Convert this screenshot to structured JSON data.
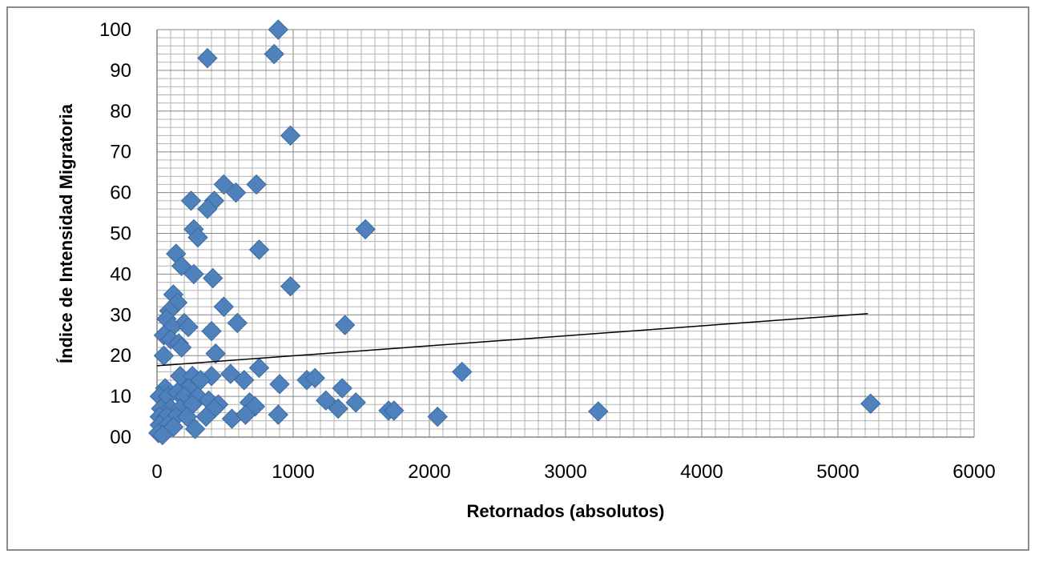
{
  "chart_data": {
    "type": "scatter",
    "xlabel": "Retornados (absolutos)",
    "ylabel": "Índice de Intensidad Migratoria",
    "xlim": [
      0,
      6000
    ],
    "ylim": [
      0,
      100
    ],
    "x_ticks": [
      "0",
      "1000",
      "2000",
      "3000",
      "4000",
      "5000",
      "6000"
    ],
    "y_ticks": [
      "00",
      "10",
      "20",
      "30",
      "40",
      "50",
      "60",
      "70",
      "80",
      "90",
      "100"
    ],
    "grid": true,
    "legend": "none",
    "marker": "diamond",
    "marker_color": "#4f81bd",
    "trendline": {
      "type": "linear",
      "x": [
        0,
        5220
      ],
      "y": [
        17.5,
        30.3
      ],
      "color": "#000000"
    },
    "points": [
      [
        890,
        100
      ],
      [
        370,
        93
      ],
      [
        860,
        94
      ],
      [
        980,
        74
      ],
      [
        730,
        62
      ],
      [
        490,
        62
      ],
      [
        580,
        60
      ],
      [
        250,
        58
      ],
      [
        420,
        58
      ],
      [
        370,
        56
      ],
      [
        270,
        51
      ],
      [
        300,
        49
      ],
      [
        1530,
        51
      ],
      [
        750,
        46
      ],
      [
        140,
        45
      ],
      [
        180,
        42
      ],
      [
        270,
        40
      ],
      [
        410,
        39
      ],
      [
        980,
        37
      ],
      [
        120,
        35
      ],
      [
        150,
        33
      ],
      [
        90,
        31
      ],
      [
        70,
        29
      ],
      [
        490,
        32
      ],
      [
        200,
        28
      ],
      [
        110,
        27
      ],
      [
        230,
        27
      ],
      [
        590,
        28
      ],
      [
        400,
        26
      ],
      [
        1380,
        27.5
      ],
      [
        50,
        25
      ],
      [
        100,
        24
      ],
      [
        160,
        23
      ],
      [
        180,
        22
      ],
      [
        430,
        20.5
      ],
      [
        50,
        20
      ],
      [
        750,
        17
      ],
      [
        2240,
        16
      ],
      [
        540,
        15.5
      ],
      [
        400,
        15
      ],
      [
        170,
        15
      ],
      [
        260,
        15
      ],
      [
        320,
        14
      ],
      [
        640,
        14
      ],
      [
        1100,
        14
      ],
      [
        1160,
        14.5
      ],
      [
        900,
        13
      ],
      [
        1360,
        12
      ],
      [
        60,
        12
      ],
      [
        230,
        12
      ],
      [
        20,
        10
      ],
      [
        80,
        10
      ],
      [
        150,
        11
      ],
      [
        200,
        10
      ],
      [
        300,
        10
      ],
      [
        380,
        9
      ],
      [
        450,
        8
      ],
      [
        680,
        8.5
      ],
      [
        1240,
        9
      ],
      [
        1460,
        8.5
      ],
      [
        5240,
        8.2
      ],
      [
        30,
        7
      ],
      [
        100,
        7
      ],
      [
        170,
        7
      ],
      [
        260,
        8
      ],
      [
        420,
        7
      ],
      [
        720,
        7.5
      ],
      [
        1330,
        7
      ],
      [
        1700,
        6.5
      ],
      [
        1740,
        6.5
      ],
      [
        3240,
        6.3
      ],
      [
        20,
        5
      ],
      [
        70,
        5
      ],
      [
        140,
        5
      ],
      [
        220,
        5
      ],
      [
        360,
        5
      ],
      [
        550,
        4.5
      ],
      [
        650,
        5.5
      ],
      [
        890,
        5.5
      ],
      [
        2060,
        5
      ],
      [
        20,
        3
      ],
      [
        80,
        3
      ],
      [
        120,
        2.5
      ],
      [
        280,
        2
      ],
      [
        10,
        1
      ],
      [
        40,
        0.5
      ]
    ]
  }
}
